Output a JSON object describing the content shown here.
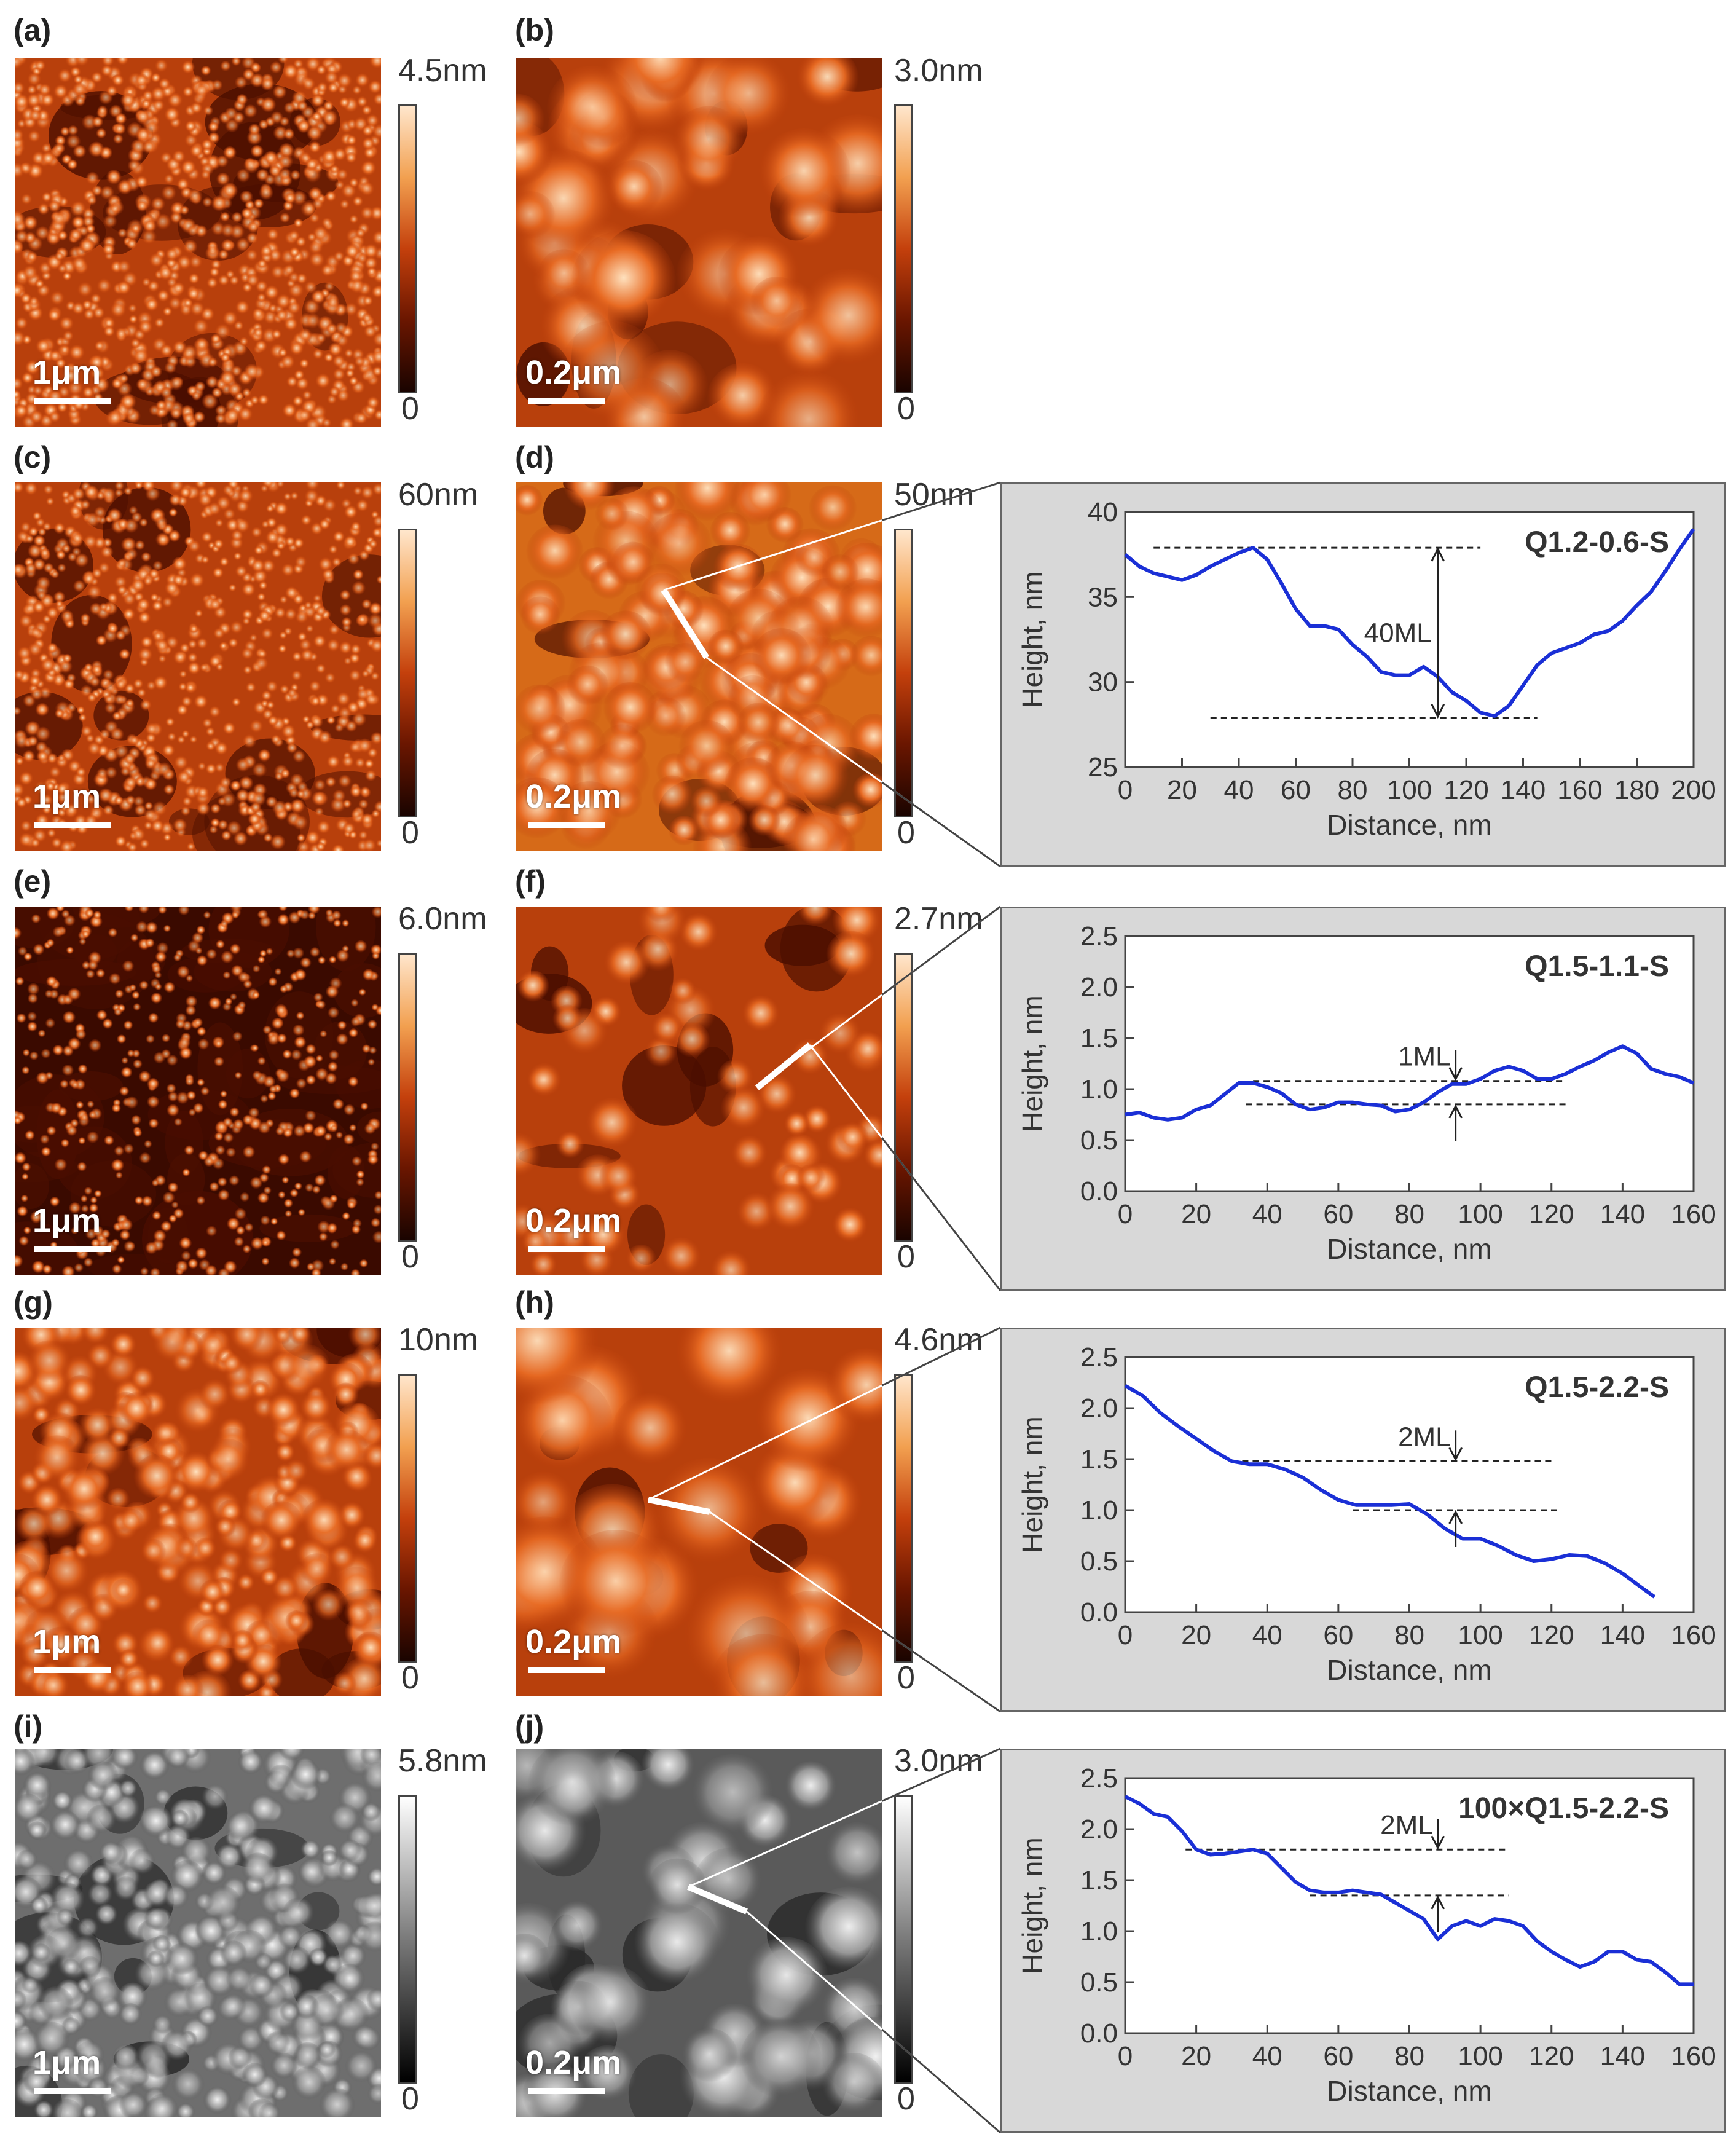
{
  "figure": {
    "labels": [
      "(a)",
      "(b)",
      "(c)",
      "(d)",
      "(e)",
      "(f)",
      "(g)",
      "(h)",
      "(i)",
      "(j)"
    ],
    "scalebars": {
      "left": "1μm",
      "right": "0.2μm"
    },
    "colorbars": [
      {
        "max": "4.5nm",
        "min": "0",
        "palette": "afm"
      },
      {
        "max": "3.0nm",
        "min": "0",
        "palette": "afm"
      },
      {
        "max": "60nm",
        "min": "0",
        "palette": "afm"
      },
      {
        "max": "50nm",
        "min": "0",
        "palette": "afm"
      },
      {
        "max": "6.0nm",
        "min": "0",
        "palette": "afm"
      },
      {
        "max": "2.7nm",
        "min": "0",
        "palette": "afm"
      },
      {
        "max": "10nm",
        "min": "0",
        "palette": "afm"
      },
      {
        "max": "4.6nm",
        "min": "0",
        "palette": "afm"
      },
      {
        "max": "5.8nm",
        "min": "0",
        "palette": "gray"
      },
      {
        "max": "3.0nm",
        "min": "0",
        "palette": "gray"
      }
    ],
    "colors": {
      "line": "#1a2fd6",
      "panel_bg": "#d8d8d8",
      "afm_dark": "#1a0400",
      "afm_mid": "#c4400c",
      "afm_light": "#ffe6cc"
    }
  },
  "chart_data": [
    {
      "type": "line",
      "panel": "d",
      "title": "Q1.2-0.6-S",
      "xlabel": "Distance, nm",
      "ylabel": "Height, nm",
      "xlim": [
        0,
        200
      ],
      "ylim": [
        25,
        40
      ],
      "xticks": [
        "0",
        "20",
        "40",
        "60",
        "80",
        "100",
        "120",
        "140",
        "160",
        "180",
        "200"
      ],
      "yticks": [
        "25",
        "30",
        "35",
        "40"
      ],
      "x": [
        0,
        5,
        10,
        15,
        20,
        25,
        30,
        35,
        40,
        45,
        50,
        55,
        60,
        65,
        70,
        75,
        80,
        85,
        90,
        95,
        100,
        105,
        110,
        115,
        120,
        125,
        130,
        135,
        140,
        145,
        150,
        155,
        160,
        165,
        170,
        175,
        180,
        185,
        190,
        195,
        200
      ],
      "y": [
        37.5,
        36.8,
        36.4,
        36.2,
        36.0,
        36.3,
        36.8,
        37.2,
        37.6,
        37.9,
        37.2,
        35.8,
        34.3,
        33.3,
        33.3,
        33.1,
        32.2,
        31.5,
        30.6,
        30.4,
        30.4,
        30.9,
        30.3,
        29.4,
        28.9,
        28.2,
        28.0,
        28.6,
        29.8,
        31.0,
        31.7,
        32.0,
        32.3,
        32.8,
        33.0,
        33.6,
        34.5,
        35.3,
        36.5,
        37.8,
        39.0
      ],
      "annotation": {
        "text": "40ML",
        "x": 110,
        "y_top": 37.9,
        "y_bottom": 27.9
      },
      "refs": [
        {
          "y": 37.9,
          "x0": 10,
          "x1": 125
        },
        {
          "y": 27.9,
          "x0": 30,
          "x1": 145
        }
      ]
    },
    {
      "type": "line",
      "panel": "f",
      "title": "Q1.5-1.1-S",
      "xlabel": "Distance, nm",
      "ylabel": "Height, nm",
      "xlim": [
        0,
        160
      ],
      "ylim": [
        0,
        2.5
      ],
      "xticks": [
        "0",
        "20",
        "40",
        "60",
        "80",
        "100",
        "120",
        "140",
        "160"
      ],
      "yticks": [
        "0.0",
        "0.5",
        "1.0",
        "1.5",
        "2.0",
        "2.5"
      ],
      "x": [
        0,
        4,
        8,
        12,
        16,
        20,
        24,
        28,
        32,
        36,
        40,
        44,
        48,
        52,
        56,
        60,
        64,
        68,
        72,
        76,
        80,
        84,
        88,
        92,
        96,
        100,
        104,
        108,
        112,
        116,
        120,
        124,
        128,
        132,
        136,
        140,
        144,
        148,
        152,
        156,
        160
      ],
      "y": [
        0.75,
        0.77,
        0.72,
        0.7,
        0.72,
        0.8,
        0.84,
        0.95,
        1.06,
        1.06,
        1.02,
        0.96,
        0.85,
        0.8,
        0.82,
        0.87,
        0.87,
        0.85,
        0.84,
        0.78,
        0.8,
        0.87,
        0.97,
        1.05,
        1.05,
        1.1,
        1.18,
        1.22,
        1.18,
        1.1,
        1.1,
        1.15,
        1.22,
        1.28,
        1.36,
        1.42,
        1.35,
        1.2,
        1.15,
        1.12,
        1.06
      ],
      "annotation": {
        "text": "1ML",
        "x": 93,
        "y_top": 1.08,
        "y_bottom": 0.85
      },
      "refs": [
        {
          "y": 1.08,
          "x0": 36,
          "x1": 124
        },
        {
          "y": 0.85,
          "x0": 34,
          "x1": 124
        }
      ]
    },
    {
      "type": "line",
      "panel": "h",
      "title": "Q1.5-2.2-S",
      "xlabel": "Distance, nm",
      "ylabel": "Height, nm",
      "xlim": [
        0,
        160
      ],
      "ylim": [
        0,
        2.5
      ],
      "xticks": [
        "0",
        "20",
        "40",
        "60",
        "80",
        "100",
        "120",
        "140",
        "160"
      ],
      "yticks": [
        "0.0",
        "0.5",
        "1.0",
        "1.5",
        "2.0",
        "2.5"
      ],
      "x": [
        0,
        5,
        10,
        15,
        20,
        25,
        30,
        35,
        40,
        45,
        50,
        55,
        60,
        65,
        70,
        75,
        80,
        85,
        90,
        95,
        100,
        105,
        110,
        115,
        120,
        125,
        130,
        135,
        140,
        145,
        149
      ],
      "y": [
        2.22,
        2.12,
        1.95,
        1.82,
        1.7,
        1.58,
        1.48,
        1.45,
        1.45,
        1.4,
        1.32,
        1.2,
        1.1,
        1.05,
        1.05,
        1.05,
        1.06,
        0.96,
        0.82,
        0.72,
        0.72,
        0.65,
        0.56,
        0.5,
        0.52,
        0.56,
        0.55,
        0.48,
        0.38,
        0.25,
        0.15
      ],
      "annotation": {
        "text": "2ML",
        "x": 93,
        "y_top": 1.48,
        "y_bottom": 1.0
      },
      "refs": [
        {
          "y": 1.48,
          "x0": 30,
          "x1": 120
        },
        {
          "y": 1.0,
          "x0": 64,
          "x1": 122
        }
      ]
    },
    {
      "type": "line",
      "panel": "j",
      "title": "100×Q1.5-2.2-S",
      "xlabel": "Distance, nm",
      "ylabel": "Height, nm",
      "xlim": [
        0,
        160
      ],
      "ylim": [
        0,
        2.5
      ],
      "xticks": [
        "0",
        "20",
        "40",
        "60",
        "80",
        "100",
        "120",
        "140",
        "160"
      ],
      "yticks": [
        "0.0",
        "0.5",
        "1.0",
        "1.5",
        "2.0",
        "2.5"
      ],
      "x": [
        0,
        4,
        8,
        12,
        16,
        20,
        24,
        28,
        32,
        36,
        40,
        44,
        48,
        52,
        56,
        60,
        64,
        68,
        72,
        76,
        80,
        84,
        88,
        92,
        96,
        100,
        104,
        108,
        112,
        116,
        120,
        124,
        128,
        132,
        136,
        140,
        144,
        148,
        152,
        156,
        160
      ],
      "y": [
        2.32,
        2.25,
        2.15,
        2.12,
        1.98,
        1.8,
        1.75,
        1.76,
        1.78,
        1.8,
        1.76,
        1.62,
        1.48,
        1.4,
        1.38,
        1.38,
        1.4,
        1.38,
        1.36,
        1.28,
        1.2,
        1.12,
        0.92,
        1.05,
        1.1,
        1.05,
        1.12,
        1.1,
        1.05,
        0.9,
        0.8,
        0.72,
        0.65,
        0.7,
        0.8,
        0.8,
        0.72,
        0.7,
        0.6,
        0.48,
        0.48
      ],
      "annotation": {
        "text": "2ML",
        "x": 88,
        "y_top": 1.8,
        "y_bottom": 1.35
      },
      "refs": [
        {
          "y": 1.8,
          "x0": 17,
          "x1": 108
        },
        {
          "y": 1.35,
          "x0": 52,
          "x1": 108
        }
      ]
    }
  ]
}
